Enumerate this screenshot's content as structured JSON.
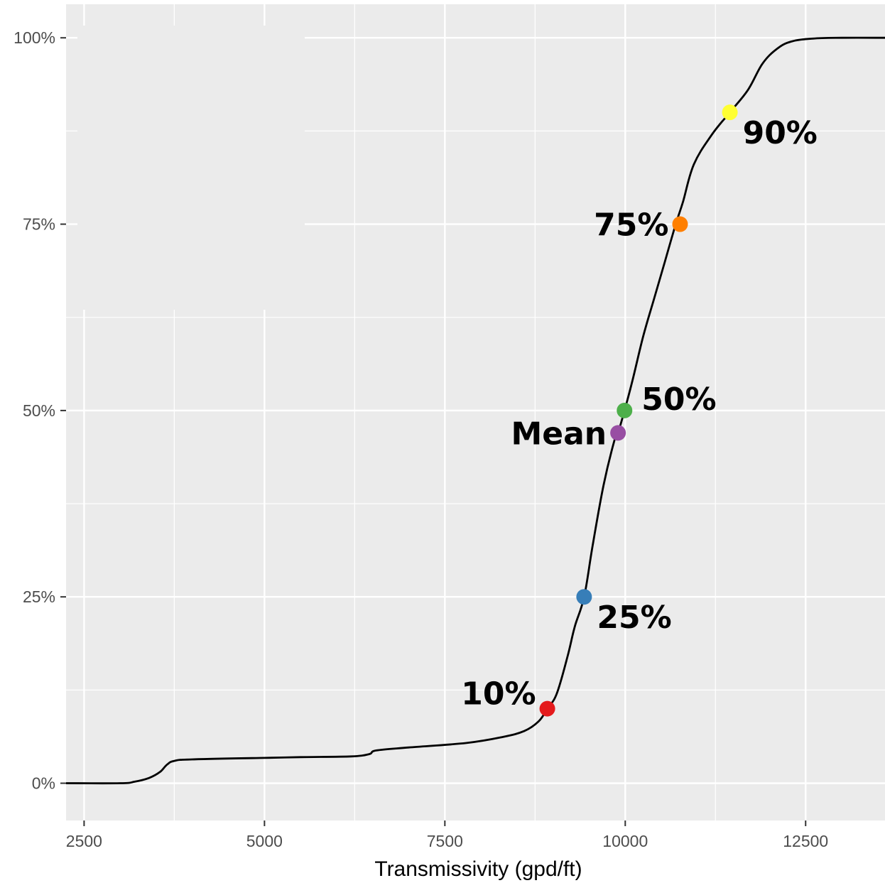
{
  "chart_data": {
    "type": "line",
    "title": "",
    "xlabel": "Transmissivity (gpd/ft)",
    "ylabel": "",
    "xlim": [
      2250,
      13600
    ],
    "ylim": [
      -0.05,
      1.045
    ],
    "x_ticks": [
      2500,
      5000,
      7500,
      10000,
      12500
    ],
    "x_tick_labels": [
      "2500",
      "5000",
      "7500",
      "10000",
      "12500"
    ],
    "y_ticks": [
      0,
      0.25,
      0.5,
      0.75,
      1.0
    ],
    "y_tick_labels": [
      "0%",
      "25%",
      "50%",
      "75%",
      "100%"
    ],
    "grid": true,
    "legend": "none",
    "series": [
      {
        "line_color": "#000000",
        "x": [
          2250,
          3000,
          3200,
          3400,
          3550,
          3650,
          3750,
          4000,
          5000,
          5500,
          6200,
          6450,
          6550,
          7000,
          7800,
          8300,
          8600,
          8800,
          8920,
          9050,
          9200,
          9300,
          9430,
          9550,
          9700,
          9850,
          9900,
          9990,
          10100,
          10250,
          10400,
          10550,
          10700,
          10800,
          10950,
          11200,
          11450,
          11700,
          11900,
          12100,
          12300,
          12600,
          13000,
          13600
        ],
        "y": [
          0,
          0,
          0.002,
          0.007,
          0.015,
          0.025,
          0.03,
          0.032,
          0.034,
          0.035,
          0.036,
          0.039,
          0.044,
          0.048,
          0.054,
          0.062,
          0.07,
          0.083,
          0.1,
          0.12,
          0.17,
          0.21,
          0.25,
          0.32,
          0.4,
          0.46,
          0.47,
          0.5,
          0.54,
          0.6,
          0.65,
          0.7,
          0.75,
          0.78,
          0.83,
          0.87,
          0.9,
          0.93,
          0.965,
          0.985,
          0.995,
          0.999,
          1.0,
          1.0
        ]
      }
    ],
    "points": [
      {
        "label": "10%",
        "x": 8920,
        "y": 0.1,
        "color": "#E41A1C",
        "label_pos": "left"
      },
      {
        "label": "25%",
        "x": 9430,
        "y": 0.25,
        "color": "#377EB8",
        "label_pos": "below-right"
      },
      {
        "label": "Mean",
        "x": 9900,
        "y": 0.47,
        "color": "#984EA3",
        "label_pos": "left"
      },
      {
        "label": "50%",
        "x": 9990,
        "y": 0.5,
        "color": "#4DAF4A",
        "label_pos": "above-right"
      },
      {
        "label": "75%",
        "x": 10760,
        "y": 0.75,
        "color": "#FF7F00",
        "label_pos": "left"
      },
      {
        "label": "90%",
        "x": 11450,
        "y": 0.9,
        "color": "#FFFF33",
        "label_pos": "below-right"
      }
    ],
    "panel_background": "#EBEBEB",
    "grid_color": "#FFFFFF"
  }
}
